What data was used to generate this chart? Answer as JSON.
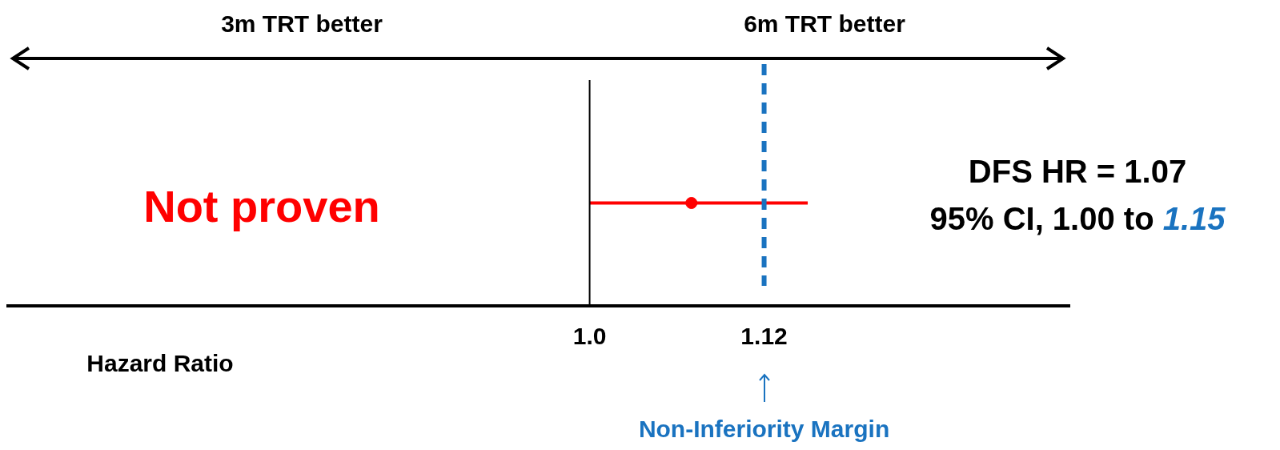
{
  "chart_data": {
    "type": "scatter",
    "orientation": "horizontal",
    "xlabel": "Hazard Ratio",
    "categories": [
      null
    ],
    "values": [
      1.07
    ],
    "errors": [
      [
        1.0,
        1.15
      ]
    ],
    "color": "#ff0000",
    "marker": "circle",
    "xlim": [
      0.6,
      1.33
    ],
    "xticks": [
      {
        "value": 1.0,
        "label": "1.0"
      },
      1.12
    ],
    "ref_lines": [
      {
        "axis": "x",
        "value": 1.0,
        "color": "#000000",
        "line_style": "solid"
      },
      {
        "axis": "x",
        "value": 1.12,
        "label": "Non-Inferiority Margin",
        "color": "#1a73c0",
        "line_style": "dashed"
      }
    ],
    "annotations": [
      "3m TRT better",
      "6m TRT better",
      "Not proven",
      "DFS HR = 1.07",
      "95% CI, 1.00 to 1.15"
    ],
    "grid": false,
    "legend": false
  }
}
